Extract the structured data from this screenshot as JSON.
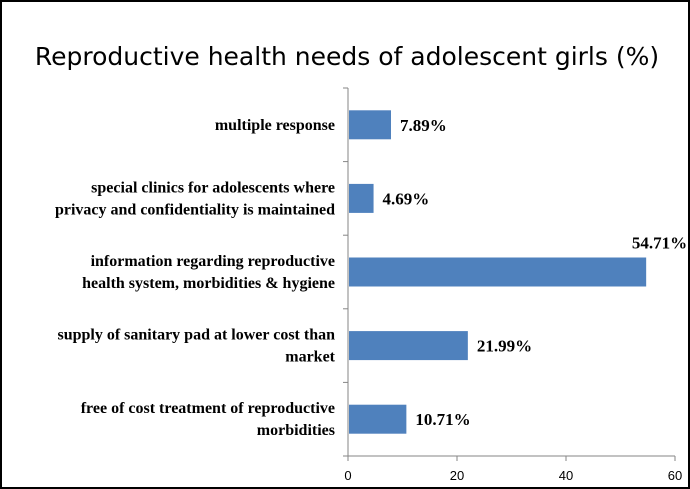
{
  "chart_data": {
    "type": "bar",
    "orientation": "horizontal",
    "title": "Reproductive health needs of adolescent girls (%)",
    "categories": [
      [
        "multiple response"
      ],
      [
        "special clinics for adolescents where",
        "privacy and confidentiality is maintained"
      ],
      [
        "information regarding reproductive",
        "health system,  morbidities & hygiene"
      ],
      [
        "supply of sanitary pad at lower cost than",
        "market"
      ],
      [
        "free of cost treatment of reproductive",
        "morbidities"
      ]
    ],
    "values": [
      7.89,
      4.69,
      54.71,
      21.99,
      10.71
    ],
    "data_labels": [
      "7.89%",
      "4.69%",
      "54.71%",
      "21.99%",
      "10.71%"
    ],
    "xlim": [
      0,
      60
    ],
    "xticks": [
      0,
      20,
      40,
      60
    ],
    "xlabel": "",
    "ylabel": "",
    "grid": false,
    "legend": "none",
    "bar_color": "#4F81BD",
    "axis_color": "#868686"
  }
}
